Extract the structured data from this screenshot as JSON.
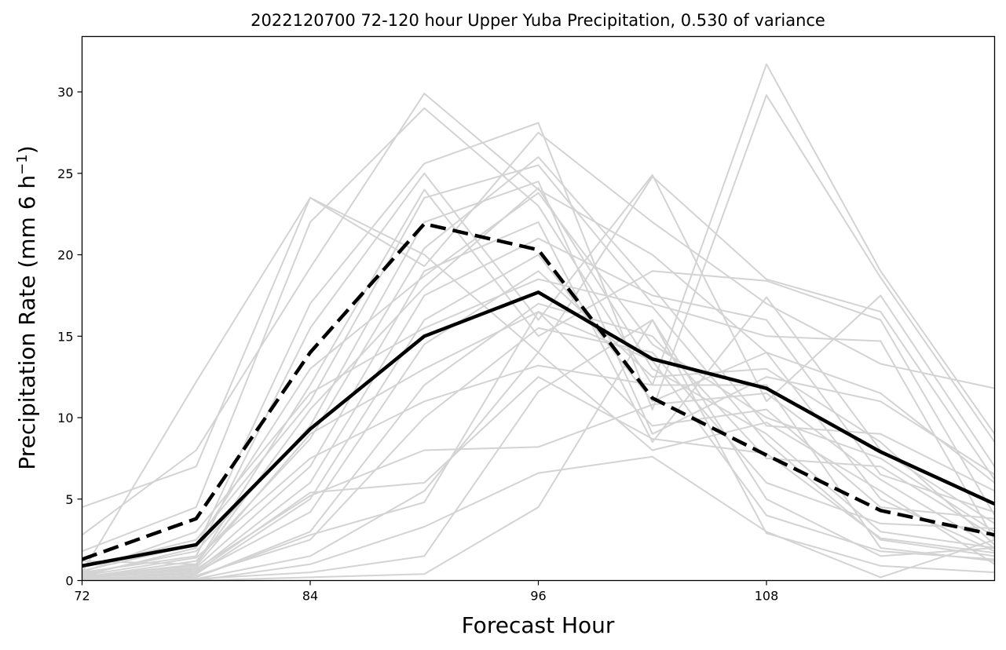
{
  "chart_data": {
    "type": "line",
    "title": "2022120700 72-120 hour Upper Yuba Precipitation, 0.530 of variance",
    "xlabel": "Forecast Hour",
    "ylabel_main": "Precipitation Rate (mm 6 h",
    "ylabel_sup": "−1",
    "ylabel_end": ")",
    "xlim": [
      72,
      120
    ],
    "ylim": [
      0,
      33.4
    ],
    "xticks": [
      72,
      84,
      96,
      108
    ],
    "yticks": [
      0,
      5,
      10,
      15,
      20,
      25,
      30
    ],
    "x": [
      72,
      78,
      84,
      90,
      96,
      102,
      108,
      114,
      120
    ],
    "grid": false,
    "colors": {
      "ensemble": "#d3d3d3",
      "highlight": "#000000"
    },
    "highlight_series": [
      {
        "style": "solid",
        "values": [
          0.9,
          2.2,
          9.3,
          15.0,
          17.7,
          13.6,
          11.8,
          7.9,
          4.7
        ]
      },
      {
        "style": "dashed",
        "values": [
          1.3,
          3.8,
          14.0,
          21.9,
          20.3,
          11.2,
          7.7,
          4.3,
          2.8
        ]
      }
    ],
    "ensemble": [
      [
        4.5,
        7.0,
        23.5,
        20.0,
        14.0,
        24.8,
        18.5,
        16.5,
        6.2
      ],
      [
        0.5,
        12.2,
        23.5,
        19.3,
        27.5,
        22.0,
        17.0,
        13.3,
        11.8
      ],
      [
        2.8,
        8.0,
        19.2,
        29.9,
        24.0,
        20.0,
        14.0,
        11.5,
        6.0
      ],
      [
        1.8,
        4.5,
        22.0,
        29.0,
        23.0,
        12.0,
        31.7,
        19.0,
        9.0
      ],
      [
        0.3,
        2.0,
        17.0,
        25.6,
        28.1,
        10.5,
        29.8,
        18.6,
        8.5
      ],
      [
        0.5,
        1.5,
        15.5,
        25.0,
        16.0,
        24.9,
        11.0,
        17.5,
        7.0
      ],
      [
        1.2,
        1.0,
        12.0,
        24.0,
        15.0,
        19.0,
        18.4,
        16.0,
        4.0
      ],
      [
        0.8,
        2.5,
        11.0,
        23.5,
        25.5,
        17.0,
        15.0,
        14.7,
        2.5
      ],
      [
        0.4,
        1.8,
        9.5,
        22.0,
        24.5,
        9.0,
        12.5,
        11.0,
        6.5
      ],
      [
        0.2,
        1.2,
        8.7,
        20.4,
        26.0,
        18.0,
        9.5,
        9.0,
        5.5
      ],
      [
        0.1,
        0.8,
        7.0,
        19.0,
        22.0,
        8.5,
        17.4,
        8.0,
        3.5
      ],
      [
        0.6,
        2.2,
        13.0,
        18.7,
        23.8,
        14.5,
        10.0,
        7.5,
        3.0
      ],
      [
        0.3,
        0.6,
        6.0,
        17.5,
        21.0,
        17.5,
        16.0,
        6.5,
        4.2
      ],
      [
        0.2,
        1.0,
        10.5,
        18.0,
        24.1,
        13.0,
        9.0,
        3.0,
        2.0
      ],
      [
        0.1,
        0.4,
        5.0,
        16.0,
        20.0,
        11.0,
        14.0,
        5.0,
        1.8
      ],
      [
        0.5,
        3.0,
        11.5,
        15.5,
        18.5,
        16.8,
        8.5,
        2.5,
        1.5
      ],
      [
        0.0,
        0.5,
        4.2,
        14.5,
        19.0,
        12.5,
        13.0,
        8.5,
        2.2
      ],
      [
        0.2,
        0.9,
        9.0,
        13.0,
        16.5,
        9.5,
        10.5,
        4.5,
        3.8
      ],
      [
        0.1,
        0.2,
        3.0,
        12.0,
        17.0,
        15.0,
        7.5,
        7.0,
        2.7
      ],
      [
        0.3,
        1.4,
        7.5,
        11.0,
        13.2,
        12.0,
        12.0,
        2.0,
        1.2
      ],
      [
        0.0,
        0.3,
        2.5,
        10.0,
        15.5,
        14.0,
        6.0,
        3.5,
        3.2
      ],
      [
        0.2,
        0.7,
        5.2,
        8.0,
        8.2,
        10.8,
        11.5,
        6.2,
        2.0
      ],
      [
        0.1,
        0.1,
        1.5,
        5.5,
        14.0,
        8.0,
        9.7,
        5.5,
        1.0
      ],
      [
        0.0,
        0.2,
        2.8,
        4.8,
        16.5,
        13.5,
        4.0,
        1.8,
        1.3
      ],
      [
        0.1,
        0.0,
        1.0,
        3.3,
        6.6,
        7.6,
        3.0,
        0.2,
        2.5
      ],
      [
        0.0,
        0.1,
        0.5,
        1.5,
        11.6,
        16.0,
        5.0,
        1.5,
        2.0
      ],
      [
        0.0,
        0.0,
        0.2,
        0.4,
        4.5,
        16.0,
        2.9,
        0.9,
        0.5
      ],
      [
        0.2,
        0.5,
        5.4,
        6.0,
        12.5,
        8.7,
        7.8,
        2.6,
        1.7
      ]
    ]
  }
}
